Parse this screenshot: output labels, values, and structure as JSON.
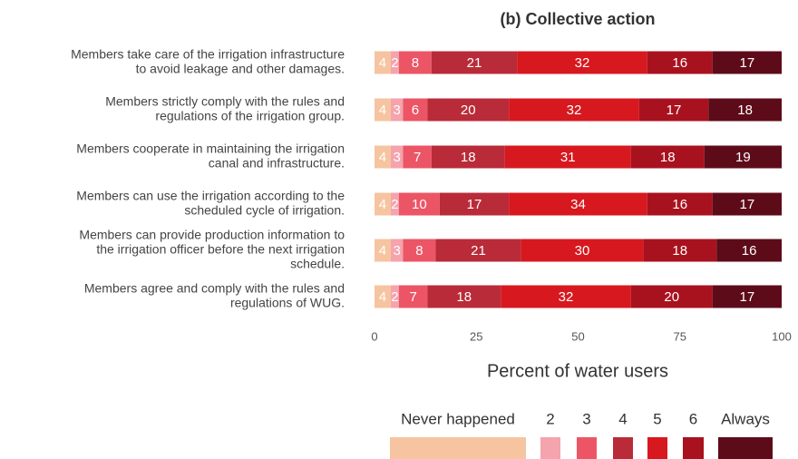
{
  "chart_data": {
    "type": "stacked-bar-horizontal",
    "title": "(b) Collective action",
    "x_label": "Percent of water users",
    "categories": [
      [
        "Members take care of the irrigation infrastructure",
        "to avoid leakage and other damages."
      ],
      [
        "Members strictly comply with the rules and",
        "regulations of the irrigation group."
      ],
      [
        "Members cooperate in maintaining the irrigation",
        "canal and infrastructure."
      ],
      [
        "Members can use the irrigation according to the",
        "scheduled cycle of irrigation."
      ],
      [
        "Members can provide production information to",
        "the irrigation officer before the next irrigation",
        "schedule."
      ],
      [
        "Members agree and comply with the rules and",
        "regulations of WUG."
      ]
    ],
    "series": [
      {
        "name": "Never happened",
        "color": "#f6c4a0",
        "values": [
          4,
          4,
          4,
          4,
          4,
          4
        ]
      },
      {
        "name": "2",
        "color": "#f5a3ad",
        "values": [
          2,
          3,
          3,
          2,
          3,
          2
        ]
      },
      {
        "name": "3",
        "color": "#ec5565",
        "values": [
          8,
          6,
          7,
          10,
          8,
          7
        ]
      },
      {
        "name": "4",
        "color": "#b92b38",
        "values": [
          21,
          20,
          18,
          17,
          21,
          18
        ]
      },
      {
        "name": "5",
        "color": "#d7181f",
        "values": [
          32,
          32,
          31,
          34,
          30,
          32
        ]
      },
      {
        "name": "6",
        "color": "#a8121f",
        "values": [
          16,
          17,
          18,
          16,
          18,
          20
        ]
      },
      {
        "name": "Always",
        "color": "#5e0b19",
        "values": [
          17,
          18,
          19,
          17,
          16,
          17
        ]
      }
    ],
    "xlim": [
      0,
      100
    ],
    "xticks": [
      0,
      25,
      50,
      75,
      100
    ],
    "legend": "bottom"
  }
}
